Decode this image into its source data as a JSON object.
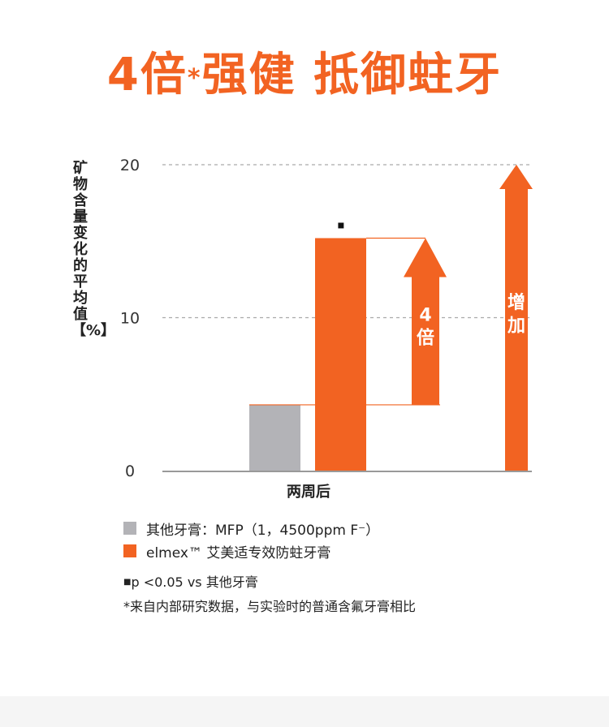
{
  "headline": {
    "main": "4倍",
    "star": "*",
    "rest": "强健 抵御蛀牙"
  },
  "colors": {
    "accent": "#f26322",
    "grey": "#b3b3b7",
    "axis": "#999999",
    "grid": "#aaaaaa"
  },
  "chart_data": {
    "type": "bar",
    "title": "",
    "ylabel": "矿物含量变化的平均值【%】",
    "ylim": [
      0,
      20
    ],
    "yticks": [
      0,
      10,
      20
    ],
    "categories": [
      "两周后"
    ],
    "grid": true,
    "series": [
      {
        "name": "其他牙膏：MFP（1，4500ppm F⁻）",
        "values": [
          4.3
        ],
        "color": "#b3b3b7"
      },
      {
        "name": "elmex™ 艾美适专效防蛀牙膏",
        "values": [
          15.2
        ],
        "color": "#f26322"
      }
    ],
    "significance_marker": "▪",
    "annotations": {
      "ratio_label": [
        "4",
        "倍"
      ],
      "increase_label": [
        "增",
        "加"
      ]
    }
  },
  "footnotes": {
    "p_value": "p <0.05 vs 其他牙膏",
    "source": "*来自内部研究数据，与实验时的普通含氟牙膏相比"
  }
}
